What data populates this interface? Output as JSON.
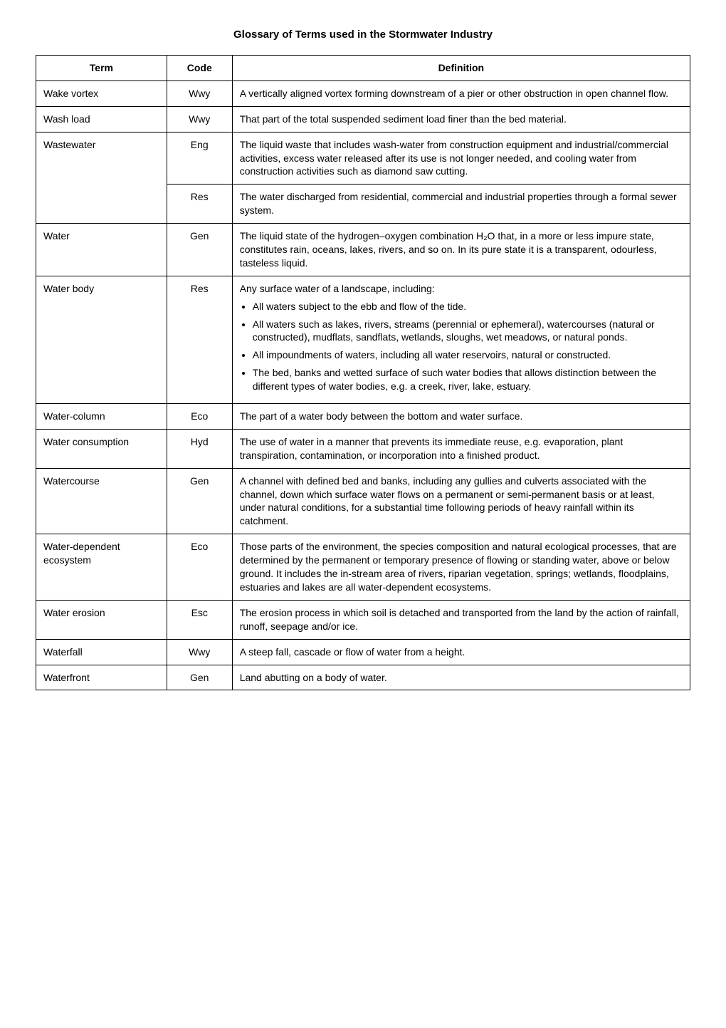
{
  "page": {
    "title": "Glossary of Terms used in the Stormwater Industry"
  },
  "table": {
    "columns": [
      "Term",
      "Code",
      "Definition"
    ],
    "rows": [
      {
        "term": "Wake vortex",
        "code": "Wwy",
        "definition": "A vertically aligned vortex forming downstream of a pier or other obstruction in open channel flow."
      },
      {
        "term": "Wash load",
        "code": "Wwy",
        "definition": "That part of the total suspended sediment load finer than the bed material."
      },
      {
        "term": "Wastewater",
        "code": "Eng",
        "definition": "The liquid waste that includes wash-water from construction equipment and industrial/commercial activities, excess water released after its use is not longer needed, and cooling water from construction activities such as diamond saw cutting."
      },
      {
        "term": "",
        "code": "Res",
        "definition": "The water discharged from residential, commercial and industrial properties through a formal sewer system."
      },
      {
        "term": "Water",
        "code": "Gen",
        "definition": "The liquid state of the hydrogen–oxygen combination H₂O that, in a more or less impure state, constitutes rain, oceans, lakes, rivers, and so on.  In its pure state it is a transparent, odourless, tasteless liquid."
      },
      {
        "term": "Water body",
        "code": "Res",
        "definition_intro": "Any surface water of a landscape, including:",
        "bullets": [
          "All waters subject to the ebb and flow of the tide.",
          "All waters such as lakes, rivers, streams (perennial or ephemeral), watercourses (natural or constructed), mudflats, sandflats, wetlands, sloughs, wet meadows, or natural ponds.",
          "All impoundments of waters, including all water reservoirs, natural or constructed.",
          "The bed, banks and wetted surface of such water bodies that allows distinction between the different types of water bodies, e.g. a creek, river, lake, estuary."
        ]
      },
      {
        "term": "Water-column",
        "code": "Eco",
        "definition": "The part of a water body between the bottom and water surface."
      },
      {
        "term": "Water consumption",
        "code": "Hyd",
        "definition": "The use of water in a manner that prevents its immediate reuse, e.g. evaporation, plant transpiration, contamination, or incorporation into a finished product."
      },
      {
        "term": "Watercourse",
        "code": "Gen",
        "definition": "A channel with defined bed and banks, including any gullies and culverts associated with the channel, down which surface water flows on a permanent or semi-permanent basis or at least, under natural conditions, for a substantial time following periods of heavy rainfall within its catchment."
      },
      {
        "term": "Water-dependent ecosystem",
        "code": "Eco",
        "definition": "Those parts of the environment, the species composition and natural ecological processes, that are determined by the permanent or temporary presence of flowing or standing water, above or below ground. It includes the in-stream area of rivers, riparian vegetation, springs; wetlands, floodplains, estuaries and lakes are all water-dependent ecosystems."
      },
      {
        "term": "Water erosion",
        "code": "Esc",
        "definition": "The erosion process in which soil is detached and transported from the land by the action of rainfall, runoff, seepage and/or ice."
      },
      {
        "term": "Waterfall",
        "code": "Wwy",
        "definition": "A steep fall, cascade or flow of water from a height."
      },
      {
        "term": "Waterfront",
        "code": "Gen",
        "definition": "Land abutting on a body of water."
      }
    ]
  }
}
